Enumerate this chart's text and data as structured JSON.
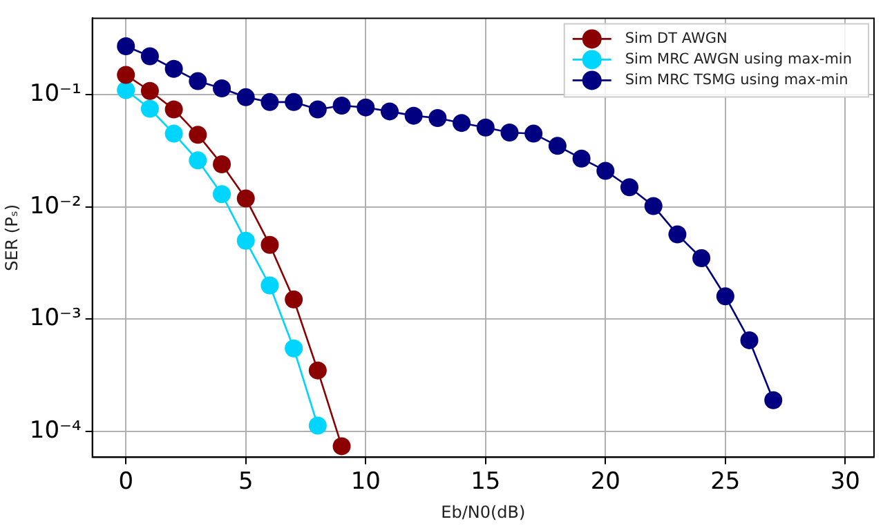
{
  "chart_data": {
    "type": "line",
    "xlabel": "Eb/N0(dB)",
    "ylabel": "SER (Pₛ)",
    "log": "y",
    "grid": true,
    "legend": "top right",
    "marker": "circle",
    "line_style": "solid",
    "xlim": [
      -1.4,
      31.2
    ],
    "xticks": [
      0,
      5,
      10,
      15,
      20,
      25,
      30
    ],
    "ylim": [
      5.9e-05,
      0.48
    ],
    "yticks": [
      {
        "value": 0.1,
        "label": "10⁻¹"
      },
      {
        "value": 0.01,
        "label": "10⁻²"
      },
      {
        "value": 0.001,
        "label": "10⁻³"
      },
      {
        "value": 0.0001,
        "label": "10⁻⁴"
      }
    ],
    "series": [
      {
        "name": "Sim DT AWGN",
        "color": "#8b0000",
        "x": [
          0,
          1,
          2,
          3,
          4,
          5,
          6,
          7,
          8,
          9
        ],
        "values": [
          0.15,
          0.108,
          0.074,
          0.044,
          0.024,
          0.0119,
          0.0046,
          0.0015,
          0.00035,
          7.4e-05
        ]
      },
      {
        "name": "Sim MRC AWGN using max-min",
        "color": "#00d5ff",
        "x": [
          0,
          1,
          2,
          3,
          4,
          5,
          6,
          7,
          8
        ],
        "values": [
          0.11,
          0.075,
          0.045,
          0.026,
          0.013,
          0.005,
          0.002,
          0.00055,
          0.000113
        ]
      },
      {
        "name": "Sim MRC TSMG using max-min",
        "color": "#000080",
        "x": [
          0,
          1,
          2,
          3,
          4,
          5,
          6,
          7,
          8,
          9,
          10,
          11,
          12,
          13,
          14,
          15,
          16,
          17,
          18,
          19,
          20,
          21,
          22,
          23,
          24,
          25,
          26,
          27
        ],
        "values": [
          0.27,
          0.22,
          0.17,
          0.132,
          0.114,
          0.095,
          0.086,
          0.086,
          0.074,
          0.08,
          0.077,
          0.071,
          0.065,
          0.062,
          0.056,
          0.051,
          0.046,
          0.045,
          0.035,
          0.027,
          0.021,
          0.015,
          0.0102,
          0.0057,
          0.0035,
          0.0016,
          0.00065,
          0.00019
        ]
      }
    ]
  }
}
